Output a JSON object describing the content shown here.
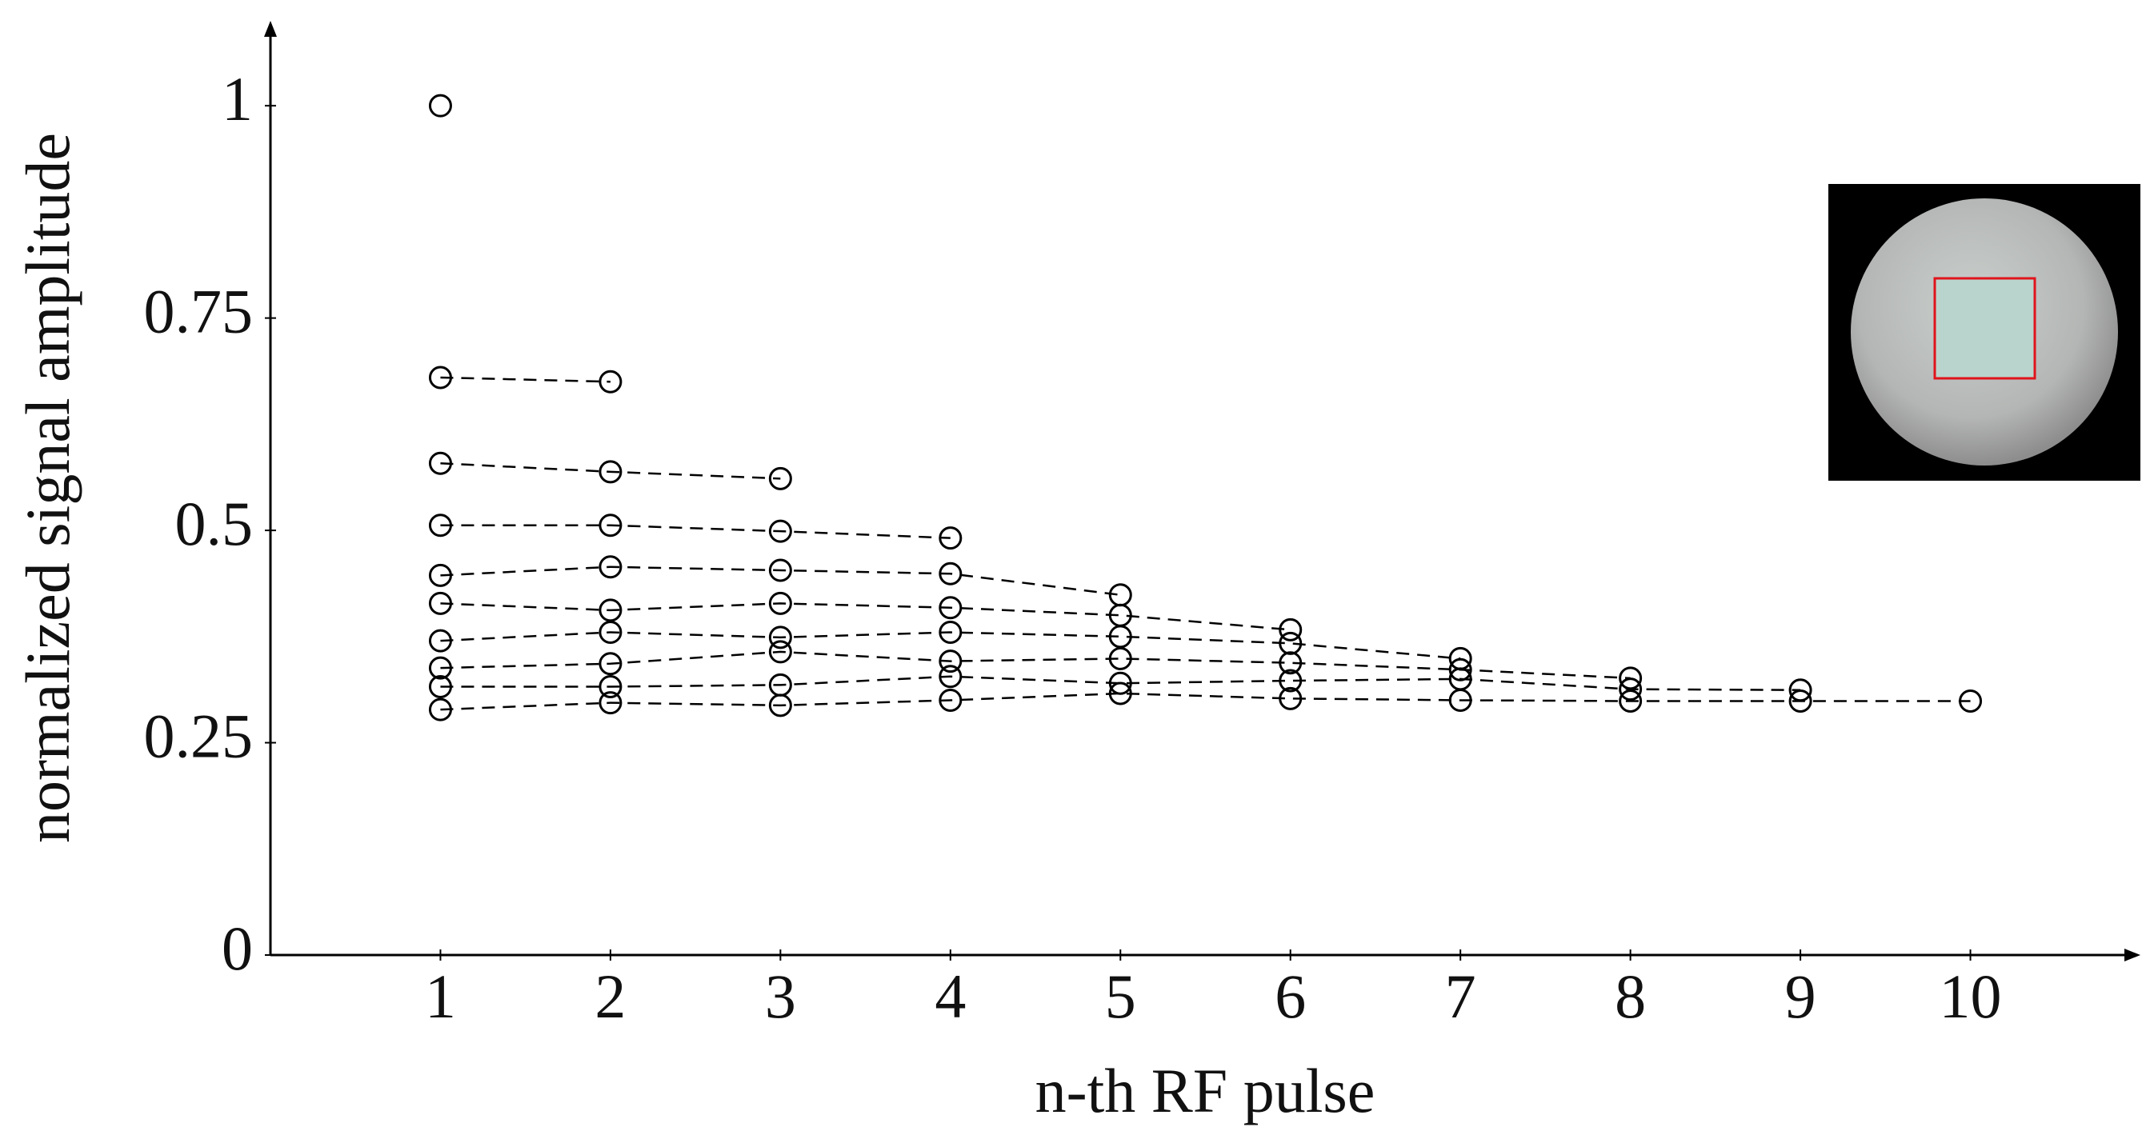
{
  "chart_data": {
    "type": "scatter-line",
    "x_label": "n-th RF pulse",
    "y_label": "normalized signal amplitude",
    "xlim": [
      0,
      11
    ],
    "ylim": [
      0,
      1.1
    ],
    "xticks": [
      1,
      2,
      3,
      4,
      5,
      6,
      7,
      8,
      9,
      10
    ],
    "yticks": [
      0,
      0.25,
      0.5,
      0.75,
      1
    ],
    "color": "#000000",
    "line_style": "dashed",
    "marker": "open-circle",
    "series": [
      {
        "x": [
          1
        ],
        "values": [
          1.0
        ]
      },
      {
        "x": [
          1,
          2
        ],
        "values": [
          0.68,
          0.675
        ]
      },
      {
        "x": [
          1,
          2,
          3
        ],
        "values": [
          0.579,
          0.569,
          0.561
        ]
      },
      {
        "x": [
          1,
          2,
          3,
          4
        ],
        "values": [
          0.506,
          0.506,
          0.499,
          0.491
        ]
      },
      {
        "x": [
          1,
          2,
          3,
          4,
          5
        ],
        "values": [
          0.447,
          0.457,
          0.453,
          0.449,
          0.424
        ]
      },
      {
        "x": [
          1,
          2,
          3,
          4,
          5,
          6
        ],
        "values": [
          0.414,
          0.406,
          0.414,
          0.409,
          0.4,
          0.383
        ]
      },
      {
        "x": [
          1,
          2,
          3,
          4,
          5,
          6,
          7
        ],
        "values": [
          0.37,
          0.38,
          0.374,
          0.38,
          0.375,
          0.367,
          0.349
        ]
      },
      {
        "x": [
          1,
          2,
          3,
          4,
          5,
          6,
          7,
          8
        ],
        "values": [
          0.338,
          0.343,
          0.357,
          0.346,
          0.349,
          0.344,
          0.336,
          0.326
        ]
      },
      {
        "x": [
          1,
          2,
          3,
          4,
          5,
          6,
          7,
          8,
          9
        ],
        "values": [
          0.316,
          0.316,
          0.318,
          0.328,
          0.32,
          0.323,
          0.325,
          0.313,
          0.312
        ]
      },
      {
        "x": [
          1,
          2,
          3,
          4,
          5,
          6,
          7,
          8,
          9,
          10
        ],
        "values": [
          0.289,
          0.297,
          0.294,
          0.3,
          0.308,
          0.302,
          0.3,
          0.299,
          0.299,
          0.299
        ]
      }
    ]
  }
}
